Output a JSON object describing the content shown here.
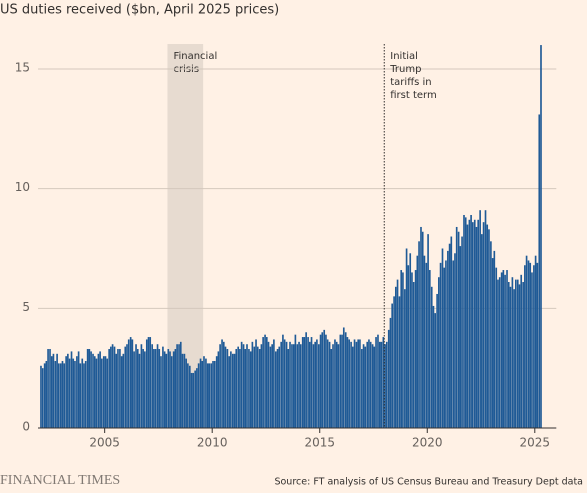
{
  "chart_data": {
    "type": "bar",
    "title": "US duties received ($bn, April 2025 prices)",
    "source": "Source: FT analysis of US Census Bureau and Treasury Dept data",
    "brand": "FINANCIAL TIMES",
    "color": "#1f5a96",
    "grid": true,
    "xlim": [
      2001.9,
      2026
    ],
    "xticks": [
      2005,
      2010,
      2015,
      2020,
      2025
    ],
    "ylim": [
      0,
      16.6
    ],
    "yticks": [
      0,
      5,
      10,
      15
    ],
    "shaded_periods": [
      {
        "start": 2007.92,
        "end": 2009.58,
        "label_lines": [
          "Financial",
          "crisis"
        ]
      }
    ],
    "vertical_lines": [
      {
        "x": 2018,
        "label_lines": [
          "Initial",
          "Trump",
          "tariffs in",
          "first term"
        ]
      }
    ],
    "x": [
      2002,
      2002.08,
      2002.17,
      2002.25,
      2002.33,
      2002.42,
      2002.5,
      2002.58,
      2002.67,
      2002.75,
      2002.83,
      2002.92,
      2003,
      2003.08,
      2003.17,
      2003.25,
      2003.33,
      2003.42,
      2003.5,
      2003.58,
      2003.67,
      2003.75,
      2003.83,
      2003.92,
      2004,
      2004.08,
      2004.17,
      2004.25,
      2004.33,
      2004.42,
      2004.5,
      2004.58,
      2004.67,
      2004.75,
      2004.83,
      2004.92,
      2005,
      2005.08,
      2005.17,
      2005.25,
      2005.33,
      2005.42,
      2005.5,
      2005.58,
      2005.67,
      2005.75,
      2005.83,
      2005.92,
      2006,
      2006.08,
      2006.17,
      2006.25,
      2006.33,
      2006.42,
      2006.5,
      2006.58,
      2006.67,
      2006.75,
      2006.83,
      2006.92,
      2007,
      2007.08,
      2007.17,
      2007.25,
      2007.33,
      2007.42,
      2007.5,
      2007.58,
      2007.67,
      2007.75,
      2007.83,
      2007.92,
      2008,
      2008.08,
      2008.17,
      2008.25,
      2008.33,
      2008.42,
      2008.5,
      2008.58,
      2008.67,
      2008.75,
      2008.83,
      2008.92,
      2009,
      2009.08,
      2009.17,
      2009.25,
      2009.33,
      2009.42,
      2009.5,
      2009.58,
      2009.67,
      2009.75,
      2009.83,
      2009.92,
      2010,
      2010.08,
      2010.17,
      2010.25,
      2010.33,
      2010.42,
      2010.5,
      2010.58,
      2010.67,
      2010.75,
      2010.83,
      2010.92,
      2011,
      2011.08,
      2011.17,
      2011.25,
      2011.33,
      2011.42,
      2011.5,
      2011.58,
      2011.67,
      2011.75,
      2011.83,
      2011.92,
      2012,
      2012.08,
      2012.17,
      2012.25,
      2012.33,
      2012.42,
      2012.5,
      2012.58,
      2012.67,
      2012.75,
      2012.83,
      2012.92,
      2013,
      2013.08,
      2013.17,
      2013.25,
      2013.33,
      2013.42,
      2013.5,
      2013.58,
      2013.67,
      2013.75,
      2013.83,
      2013.92,
      2014,
      2014.08,
      2014.17,
      2014.25,
      2014.33,
      2014.42,
      2014.5,
      2014.58,
      2014.67,
      2014.75,
      2014.83,
      2014.92,
      2015,
      2015.08,
      2015.17,
      2015.25,
      2015.33,
      2015.42,
      2015.5,
      2015.58,
      2015.67,
      2015.75,
      2015.83,
      2015.92,
      2016,
      2016.08,
      2016.17,
      2016.25,
      2016.33,
      2016.42,
      2016.5,
      2016.58,
      2016.67,
      2016.75,
      2016.83,
      2016.92,
      2017,
      2017.08,
      2017.17,
      2017.25,
      2017.33,
      2017.42,
      2017.5,
      2017.58,
      2017.67,
      2017.75,
      2017.83,
      2017.92,
      2018,
      2018.08,
      2018.17,
      2018.25,
      2018.33,
      2018.42,
      2018.5,
      2018.58,
      2018.67,
      2018.75,
      2018.83,
      2018.92,
      2019,
      2019.08,
      2019.17,
      2019.25,
      2019.33,
      2019.42,
      2019.5,
      2019.58,
      2019.67,
      2019.75,
      2019.83,
      2019.92,
      2020,
      2020.08,
      2020.17,
      2020.25,
      2020.33,
      2020.42,
      2020.5,
      2020.58,
      2020.67,
      2020.75,
      2020.83,
      2020.92,
      2021,
      2021.08,
      2021.17,
      2021.25,
      2021.33,
      2021.42,
      2021.5,
      2021.58,
      2021.67,
      2021.75,
      2021.83,
      2021.92,
      2022,
      2022.08,
      2022.17,
      2022.25,
      2022.33,
      2022.42,
      2022.5,
      2022.58,
      2022.67,
      2022.75,
      2022.83,
      2022.92,
      2023,
      2023.08,
      2023.17,
      2023.25,
      2023.33,
      2023.42,
      2023.5,
      2023.58,
      2023.67,
      2023.75,
      2023.83,
      2023.92,
      2024,
      2024.08,
      2024.17,
      2024.25,
      2024.33,
      2024.42,
      2024.5,
      2024.58,
      2024.67,
      2024.75,
      2024.83,
      2024.92,
      2025,
      2025.08,
      2025.17,
      2025.25
    ],
    "values": [
      2.6,
      2.5,
      2.7,
      2.8,
      3.3,
      3.3,
      3.0,
      3.1,
      2.8,
      3.1,
      2.7,
      2.7,
      2.8,
      2.7,
      3.0,
      3.1,
      2.9,
      3.2,
      2.9,
      2.8,
      3.0,
      3.2,
      2.7,
      2.9,
      2.7,
      2.8,
      3.3,
      3.3,
      3.2,
      3.1,
      3.0,
      2.9,
      3.1,
      3.2,
      2.9,
      3.0,
      3.0,
      2.9,
      3.3,
      3.4,
      3.5,
      3.4,
      3.1,
      3.3,
      3.3,
      3.0,
      3.1,
      3.4,
      3.5,
      3.7,
      3.8,
      3.7,
      3.2,
      3.5,
      3.3,
      3.1,
      3.5,
      3.3,
      3.2,
      3.7,
      3.8,
      3.8,
      3.5,
      3.3,
      3.3,
      3.5,
      3.3,
      3.0,
      3.4,
      3.2,
      3.1,
      3.3,
      3.2,
      3.0,
      3.2,
      3.3,
      3.5,
      3.5,
      3.6,
      3.1,
      3.1,
      2.9,
      2.7,
      2.6,
      2.3,
      2.3,
      2.4,
      2.5,
      2.7,
      2.9,
      2.8,
      3.0,
      2.9,
      2.7,
      2.7,
      2.7,
      2.8,
      2.8,
      3.0,
      3.2,
      3.5,
      3.7,
      3.6,
      3.4,
      3.3,
      3.0,
      3.2,
      3.1,
      3.1,
      3.3,
      3.4,
      3.3,
      3.6,
      3.5,
      3.3,
      3.5,
      3.3,
      3.2,
      3.6,
      3.4,
      3.7,
      3.4,
      3.3,
      3.5,
      3.8,
      3.9,
      3.8,
      3.6,
      3.4,
      3.5,
      3.7,
      3.2,
      3.3,
      3.4,
      3.6,
      3.9,
      3.7,
      3.6,
      3.3,
      3.6,
      3.5,
      3.5,
      3.9,
      3.5,
      3.6,
      3.5,
      3.8,
      3.8,
      4.0,
      3.8,
      3.6,
      3.8,
      3.5,
      3.6,
      3.7,
      3.5,
      3.9,
      4.0,
      4.1,
      3.9,
      3.7,
      3.6,
      3.3,
      3.5,
      3.7,
      3.6,
      3.5,
      3.9,
      3.9,
      4.2,
      4.0,
      3.8,
      3.7,
      3.6,
      3.4,
      3.7,
      3.6,
      3.7,
      3.7,
      3.3,
      3.5,
      3.4,
      3.6,
      3.7,
      3.6,
      3.5,
      3.4,
      3.8,
      3.9,
      3.6,
      3.6,
      3.8,
      3.5,
      3.6,
      4.1,
      4.6,
      5.2,
      5.5,
      5.9,
      6.2,
      5.5,
      6.6,
      6.5,
      5.8,
      7.5,
      6.8,
      7.3,
      6.5,
      6.1,
      6.6,
      7.2,
      7.8,
      8.4,
      8.2,
      7.2,
      6.9,
      8.1,
      6.6,
      5.9,
      5.1,
      4.8,
      5.6,
      6.3,
      6.9,
      7.5,
      6.7,
      7.0,
      7.4,
      7.7,
      8.0,
      7.0,
      7.3,
      8.4,
      8.2,
      7.6,
      8.0,
      8.9,
      8.8,
      8.5,
      8.7,
      8.9,
      8.6,
      8.7,
      8.4,
      8.7,
      9.1,
      8.1,
      8.6,
      9.1,
      8.5,
      8.3,
      7.8,
      7.1,
      7.4,
      6.7,
      6.2,
      6.3,
      6.5,
      6.6,
      6.4,
      6.6,
      6.1,
      5.9,
      6.3,
      5.8,
      6.2,
      6.2,
      6.0,
      6.4,
      6.1,
      6.8,
      7.2,
      7.0,
      6.9,
      6.5,
      6.8,
      7.2,
      6.9,
      13.1,
      16.0
    ]
  }
}
